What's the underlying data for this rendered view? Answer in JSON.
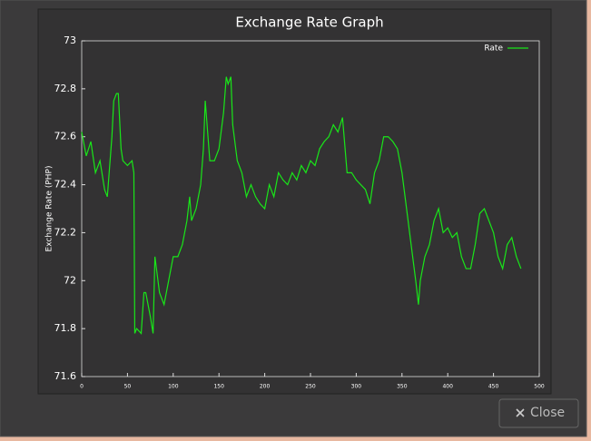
{
  "chart_data": {
    "type": "line",
    "title": "Exchange Rate Graph",
    "y_label": "Exchange Rate (PHP)",
    "x": [
      0,
      5,
      10,
      15,
      20,
      25,
      28,
      30,
      33,
      35,
      38,
      40,
      43,
      45,
      50,
      55,
      57,
      58,
      60,
      65,
      68,
      70,
      75,
      78,
      80,
      85,
      90,
      95,
      100,
      105,
      110,
      115,
      118,
      120,
      125,
      130,
      133,
      135,
      140,
      145,
      150,
      155,
      158,
      160,
      163,
      165,
      170,
      175,
      180,
      185,
      190,
      195,
      200,
      205,
      210,
      215,
      220,
      225,
      230,
      235,
      240,
      245,
      250,
      255,
      260,
      265,
      270,
      275,
      280,
      285,
      290,
      295,
      300,
      305,
      310,
      315,
      320,
      325,
      330,
      335,
      340,
      345,
      350,
      355,
      360,
      365,
      368,
      370,
      375,
      380,
      385,
      390,
      395,
      400,
      405,
      410,
      415,
      420,
      425,
      430,
      435,
      440,
      445,
      450,
      455,
      460,
      465,
      470,
      475,
      480
    ],
    "series": [
      {
        "name": "Rate",
        "color": "#19e619",
        "values": [
          72.62,
          72.52,
          72.58,
          72.45,
          72.5,
          72.38,
          72.35,
          72.45,
          72.6,
          72.75,
          72.78,
          72.78,
          72.55,
          72.5,
          72.48,
          72.5,
          72.45,
          71.78,
          71.8,
          71.78,
          71.95,
          71.95,
          71.85,
          71.78,
          72.1,
          71.95,
          71.9,
          72.0,
          72.1,
          72.1,
          72.15,
          72.25,
          72.35,
          72.25,
          72.3,
          72.4,
          72.55,
          72.75,
          72.5,
          72.5,
          72.55,
          72.7,
          72.85,
          72.82,
          72.85,
          72.65,
          72.5,
          72.45,
          72.35,
          72.4,
          72.35,
          72.32,
          72.3,
          72.4,
          72.35,
          72.45,
          72.42,
          72.4,
          72.45,
          72.42,
          72.48,
          72.45,
          72.5,
          72.48,
          72.55,
          72.58,
          72.6,
          72.65,
          72.62,
          72.68,
          72.45,
          72.45,
          72.42,
          72.4,
          72.38,
          72.32,
          72.45,
          72.5,
          72.6,
          72.6,
          72.58,
          72.55,
          72.45,
          72.3,
          72.15,
          72.0,
          71.9,
          72.0,
          72.1,
          72.15,
          72.25,
          72.3,
          72.2,
          72.22,
          72.18,
          72.2,
          72.1,
          72.05,
          72.05,
          72.15,
          72.28,
          72.3,
          72.25,
          72.2,
          72.1,
          72.05,
          72.15,
          72.18,
          72.1,
          72.05
        ]
      }
    ],
    "xlim": [
      0,
      500
    ],
    "xticks": [
      0,
      50,
      100,
      150,
      200,
      250,
      300,
      350,
      400,
      450,
      500
    ],
    "ylim": [
      71.6,
      73
    ],
    "yticks": [
      71.6,
      71.8,
      72,
      72.2,
      72.4,
      72.6,
      72.8,
      73
    ],
    "legend": "top-right"
  },
  "dialog": {
    "close_label": "Close"
  }
}
